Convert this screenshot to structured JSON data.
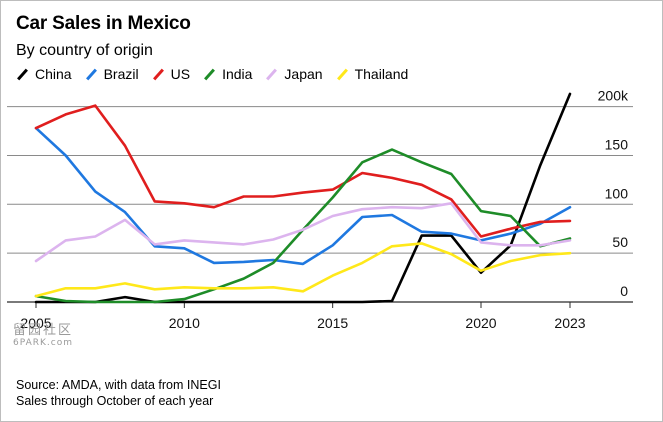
{
  "title": "Car Sales in Mexico",
  "subtitle": "By country of origin",
  "footer": {
    "source": "Source: AMDA, with data from INEGI",
    "note": "Sales through October of each year"
  },
  "watermark": {
    "main": "留园社区",
    "sub": "6PARK.com"
  },
  "chart_data": {
    "type": "line",
    "title": "Car Sales in Mexico",
    "subtitle": "By country of origin",
    "xlabel": "",
    "ylabel": "",
    "x": [
      2005,
      2006,
      2007,
      2008,
      2009,
      2010,
      2011,
      2012,
      2013,
      2014,
      2015,
      2016,
      2017,
      2018,
      2019,
      2020,
      2021,
      2022,
      2023
    ],
    "xlim": [
      2005,
      2023
    ],
    "ylim": [
      0,
      210
    ],
    "x_ticks": [
      {
        "value": 2005,
        "label": "2005"
      },
      {
        "value": 2010,
        "label": "2010"
      },
      {
        "value": 2015,
        "label": "2015"
      },
      {
        "value": 2020,
        "label": "2020"
      },
      {
        "value": 2023,
        "label": "2023"
      }
    ],
    "y_ticks": [
      {
        "value": 0,
        "label": "0"
      },
      {
        "value": 50,
        "label": "50"
      },
      {
        "value": 100,
        "label": "100"
      },
      {
        "value": 150,
        "label": "150"
      },
      {
        "value": 200,
        "label": "200k"
      }
    ],
    "grid": true,
    "legend_position": "top-left",
    "series": [
      {
        "name": "China",
        "color": "#000000",
        "values": [
          0,
          0,
          0,
          5,
          0,
          0,
          0,
          0,
          0,
          0,
          0,
          0,
          1,
          68,
          68,
          30,
          58,
          140,
          213
        ]
      },
      {
        "name": "Brazil",
        "color": "#1f78e0",
        "values": [
          178,
          150,
          113,
          92,
          57,
          55,
          40,
          41,
          43,
          39,
          58,
          87,
          89,
          72,
          70,
          63,
          70,
          80,
          97
        ]
      },
      {
        "name": "US",
        "color": "#e01e1e",
        "values": [
          178,
          192,
          201,
          160,
          103,
          101,
          97,
          108,
          108,
          112,
          115,
          132,
          127,
          120,
          105,
          67,
          75,
          82,
          83
        ]
      },
      {
        "name": "India",
        "color": "#1e8c28",
        "values": [
          6,
          1,
          0,
          0,
          0,
          3,
          13,
          24,
          40,
          74,
          107,
          143,
          156,
          143,
          131,
          93,
          88,
          57,
          65
        ]
      },
      {
        "name": "Japan",
        "color": "#dcb4ee",
        "values": [
          42,
          63,
          67,
          84,
          59,
          63,
          61,
          59,
          64,
          74,
          88,
          95,
          97,
          96,
          101,
          61,
          58,
          58,
          63
        ]
      },
      {
        "name": "Thailand",
        "color": "#ffe81a",
        "values": [
          6,
          14,
          14,
          19,
          13,
          15,
          14,
          14,
          15,
          11,
          27,
          40,
          57,
          60,
          49,
          32,
          42,
          48,
          50
        ]
      }
    ]
  }
}
